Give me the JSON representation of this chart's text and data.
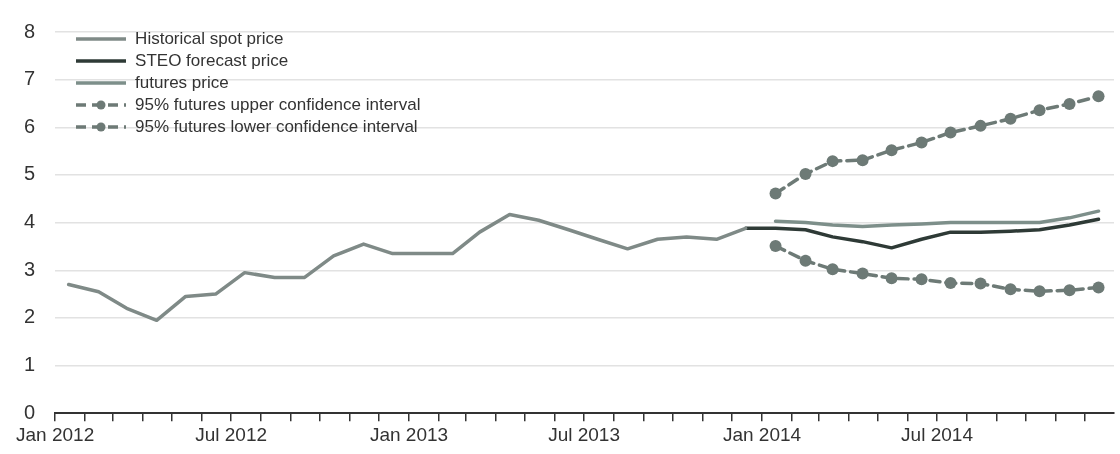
{
  "chart_data": {
    "type": "line",
    "series": [
      {
        "name": "Historical spot price",
        "color": "#7f8a87",
        "x": [
          "2012-01-15",
          "2012-02-15",
          "2012-03-15",
          "2012-04-15",
          "2012-05-15",
          "2012-06-15",
          "2012-07-15",
          "2012-08-15",
          "2012-09-15",
          "2012-10-15",
          "2012-11-15",
          "2012-12-15",
          "2013-01-15",
          "2013-02-15",
          "2013-03-15",
          "2013-04-15",
          "2013-05-15",
          "2013-06-15",
          "2013-07-15",
          "2013-08-15",
          "2013-09-15",
          "2013-10-15",
          "2013-11-15",
          "2013-12-15"
        ],
        "values": [
          2.7,
          2.55,
          2.2,
          1.95,
          2.45,
          2.5,
          2.95,
          2.85,
          2.85,
          3.3,
          3.55,
          3.35,
          3.35,
          3.35,
          3.8,
          4.17,
          4.05,
          3.85,
          3.65,
          3.45,
          3.65,
          3.7,
          3.65,
          3.88
        ]
      },
      {
        "name": "STEO forecast price",
        "color": "#2e3a36",
        "x": [
          "2013-12-15",
          "2014-01-15",
          "2014-02-15",
          "2014-03-15",
          "2014-04-15",
          "2014-05-15",
          "2014-06-15",
          "2014-07-15",
          "2014-08-15",
          "2014-09-15",
          "2014-10-15",
          "2014-11-15",
          "2014-12-15"
        ],
        "values": [
          3.88,
          3.88,
          3.85,
          3.7,
          3.6,
          3.47,
          3.65,
          3.8,
          3.8,
          3.82,
          3.85,
          3.95,
          4.07
        ]
      },
      {
        "name": "futures price",
        "color": "#7d8f8a",
        "x": [
          "2014-01-15",
          "2014-02-15",
          "2014-03-15",
          "2014-04-15",
          "2014-05-15",
          "2014-06-15",
          "2014-07-15",
          "2014-08-15",
          "2014-09-15",
          "2014-10-15",
          "2014-11-15",
          "2014-12-15"
        ],
        "values": [
          4.03,
          4.0,
          3.95,
          3.92,
          3.95,
          3.97,
          4.0,
          4.0,
          4.0,
          4.0,
          4.1,
          4.24
        ]
      },
      {
        "name": "95% futures upper confidence interval",
        "color": "#6d7a76",
        "marker": "circle",
        "line_style": "dashed",
        "x": [
          "2014-01-15",
          "2014-02-15",
          "2014-03-15",
          "2014-04-15",
          "2014-05-15",
          "2014-06-15",
          "2014-07-15",
          "2014-08-15",
          "2014-09-15",
          "2014-10-15",
          "2014-11-15",
          "2014-12-15"
        ],
        "values": [
          4.61,
          5.02,
          5.29,
          5.31,
          5.52,
          5.68,
          5.89,
          6.03,
          6.18,
          6.36,
          6.49,
          6.65
        ]
      },
      {
        "name": "95% futures lower confidence interval",
        "color": "#6d7a76",
        "marker": "circle",
        "line_style": "dashed",
        "x": [
          "2014-01-15",
          "2014-02-15",
          "2014-03-15",
          "2014-04-15",
          "2014-05-15",
          "2014-06-15",
          "2014-07-15",
          "2014-08-15",
          "2014-09-15",
          "2014-10-15",
          "2014-11-15",
          "2014-12-15"
        ],
        "values": [
          3.51,
          3.2,
          3.02,
          2.93,
          2.83,
          2.81,
          2.73,
          2.72,
          2.6,
          2.56,
          2.58,
          2.64
        ]
      }
    ],
    "xlim": [
      "2012-01-01",
      "2014-12-31"
    ],
    "xticks": [
      {
        "value": "2012-01",
        "label": "Jan 2012"
      },
      {
        "value": "2012-02",
        "label": null
      },
      {
        "value": "2012-03",
        "label": null
      },
      {
        "value": "2012-04",
        "label": null
      },
      {
        "value": "2012-05",
        "label": null
      },
      {
        "value": "2012-06",
        "label": null
      },
      {
        "value": "2012-07",
        "label": "Jul 2012"
      },
      {
        "value": "2012-08",
        "label": null
      },
      {
        "value": "2012-09",
        "label": null
      },
      {
        "value": "2012-10",
        "label": null
      },
      {
        "value": "2012-11",
        "label": null
      },
      {
        "value": "2012-12",
        "label": null
      },
      {
        "value": "2013-01",
        "label": "Jan 2013"
      },
      {
        "value": "2013-02",
        "label": null
      },
      {
        "value": "2013-03",
        "label": null
      },
      {
        "value": "2013-04",
        "label": null
      },
      {
        "value": "2013-05",
        "label": null
      },
      {
        "value": "2013-06",
        "label": null
      },
      {
        "value": "2013-07",
        "label": "Jul 2013"
      },
      {
        "value": "2013-08",
        "label": null
      },
      {
        "value": "2013-09",
        "label": null
      },
      {
        "value": "2013-10",
        "label": null
      },
      {
        "value": "2013-11",
        "label": null
      },
      {
        "value": "2013-12",
        "label": null
      },
      {
        "value": "2014-01",
        "label": "Jan 2014"
      },
      {
        "value": "2014-02",
        "label": null
      },
      {
        "value": "2014-03",
        "label": null
      },
      {
        "value": "2014-04",
        "label": null
      },
      {
        "value": "2014-05",
        "label": null
      },
      {
        "value": "2014-06",
        "label": null
      },
      {
        "value": "2014-07",
        "label": "Jul 2014"
      },
      {
        "value": "2014-08",
        "label": null
      },
      {
        "value": "2014-09",
        "label": null
      },
      {
        "value": "2014-10",
        "label": null
      },
      {
        "value": "2014-11",
        "label": null
      },
      {
        "value": "2014-12",
        "label": null
      }
    ],
    "ylim": [
      0,
      8
    ],
    "yticks": [
      0,
      1,
      2,
      3,
      4,
      5,
      6,
      7,
      8
    ],
    "grid": "y",
    "legend": "top left",
    "marker": "none",
    "line_style": "solid"
  }
}
